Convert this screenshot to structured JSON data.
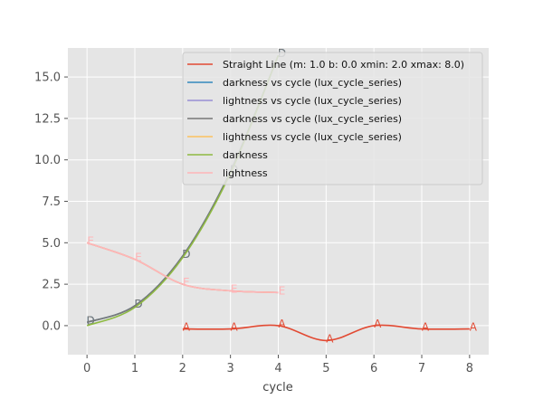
{
  "chart_data": {
    "type": "line",
    "xlabel": "cycle",
    "ylabel": "",
    "xlim": [
      -0.4,
      8.4
    ],
    "ylim": [
      -1.75,
      16.75
    ],
    "x_ticks": [
      0,
      1,
      2,
      3,
      4,
      5,
      6,
      7,
      8
    ],
    "x_tick_labels": [
      "0",
      "1",
      "2",
      "3",
      "4",
      "5",
      "6",
      "7",
      "8"
    ],
    "y_ticks": [
      0,
      2.5,
      5,
      7.5,
      10,
      12.5,
      15
    ],
    "y_tick_labels": [
      "0.0",
      "2.5",
      "5.0",
      "7.5",
      "10.0",
      "12.5",
      "15.0"
    ],
    "grid": true,
    "legend_position": "top-right",
    "series": [
      {
        "name": "Straight Line (m: 1.0 b: 0.0 xmin: 2.0 xmax: 8.0)",
        "color": "#E24A33",
        "marker": "A",
        "x": [
          2,
          3,
          4,
          5,
          6,
          7,
          8
        ],
        "y": [
          -0.2,
          -0.2,
          0.0,
          -0.9,
          0.0,
          -0.2,
          -0.2
        ],
        "smooth": true
      },
      {
        "name": "darkness vs cycle (lux_cycle_series)",
        "color": "#348ABD",
        "marker": "D",
        "x": [
          0,
          1,
          2,
          3,
          4
        ],
        "y": [
          0.2,
          1.2,
          4.2,
          9.3,
          16.3
        ],
        "smooth": true
      },
      {
        "name": "lightness vs cycle (lux_cycle_series)",
        "color": "#988ED5",
        "marker": "",
        "x": [
          0,
          1,
          2,
          3,
          4
        ],
        "y": [
          5.0,
          4.0,
          2.5,
          2.1,
          2.0
        ],
        "smooth": true
      },
      {
        "name": "darkness vs cycle (lux_cycle_series)",
        "color": "#777777",
        "marker": "D",
        "x": [
          0,
          1,
          2,
          3,
          4
        ],
        "y": [
          0.2,
          1.2,
          4.2,
          9.3,
          16.3
        ],
        "smooth": true
      },
      {
        "name": "lightness vs cycle (lux_cycle_series)",
        "color": "#FBC15E",
        "marker": "",
        "x": [
          0,
          1,
          2,
          3,
          4
        ],
        "y": [
          5.0,
          4.0,
          2.5,
          2.1,
          2.0
        ],
        "smooth": true
      },
      {
        "name": "darkness",
        "color": "#8EBA42",
        "marker": "",
        "x": [
          0,
          1,
          2,
          3,
          4
        ],
        "y": [
          0.0,
          1.1,
          4.1,
          9.2,
          16.3
        ],
        "smooth": true
      },
      {
        "name": "lightness",
        "color": "#FFB5B8",
        "marker": "E",
        "x": [
          0,
          1,
          2,
          3,
          4
        ],
        "y": [
          5.0,
          4.0,
          2.5,
          2.1,
          2.0
        ],
        "smooth": true
      }
    ]
  }
}
